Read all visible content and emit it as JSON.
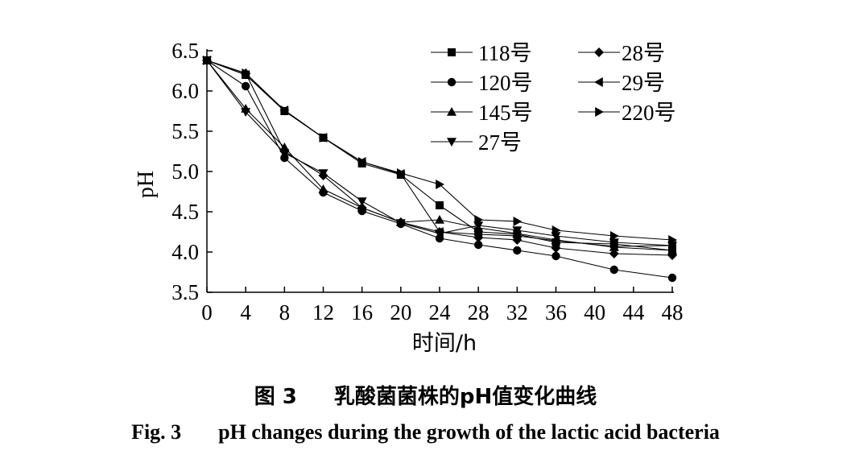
{
  "chart_data": {
    "type": "line",
    "xlabel": "时间/h",
    "ylabel": "pH",
    "xlim": [
      0,
      48
    ],
    "ylim": [
      3.5,
      6.5
    ],
    "xticks": [
      "0",
      "4",
      "8",
      "12",
      "16",
      "20",
      "24",
      "28",
      "32",
      "36",
      "40",
      "44",
      "48"
    ],
    "yticks": [
      "3.5",
      "4.0",
      "4.5",
      "5.0",
      "5.5",
      "6.0",
      "6.5"
    ],
    "grid": false,
    "legend_position": "top-right",
    "x": [
      0,
      4,
      8,
      12,
      16,
      20,
      24,
      28,
      32,
      36,
      42,
      48
    ],
    "series": [
      {
        "name": "118号",
        "marker": "square",
        "values": [
          6.38,
          6.2,
          5.75,
          5.42,
          5.1,
          4.96,
          4.58,
          4.25,
          4.22,
          4.12,
          4.1,
          4.02
        ]
      },
      {
        "name": "28号",
        "marker": "diamond",
        "values": [
          6.38,
          6.22,
          5.25,
          4.95,
          4.55,
          4.37,
          4.25,
          4.18,
          4.15,
          4.05,
          3.98,
          3.96
        ]
      },
      {
        "name": "120号",
        "marker": "circle",
        "values": [
          6.38,
          6.06,
          5.17,
          4.74,
          4.51,
          4.35,
          4.17,
          4.09,
          4.02,
          3.95,
          3.78,
          3.68
        ]
      },
      {
        "name": "29号",
        "marker": "triangle-left",
        "values": [
          6.38,
          6.2,
          5.76,
          5.42,
          5.12,
          4.97,
          4.25,
          4.22,
          4.2,
          4.14,
          4.07,
          4.08
        ]
      },
      {
        "name": "145号",
        "marker": "triangle-up",
        "values": [
          6.38,
          5.78,
          5.3,
          4.78,
          4.55,
          4.37,
          4.4,
          4.3,
          4.23,
          4.15,
          4.06,
          4.02
        ]
      },
      {
        "name": "220号",
        "marker": "triangle-right",
        "values": [
          6.38,
          6.22,
          5.76,
          5.42,
          5.12,
          4.98,
          4.84,
          4.4,
          4.38,
          4.27,
          4.2,
          4.15
        ]
      },
      {
        "name": "27号",
        "marker": "triangle-down",
        "values": [
          6.38,
          5.74,
          5.23,
          4.98,
          4.63,
          4.36,
          4.23,
          4.33,
          4.27,
          4.2,
          4.12,
          4.08
        ]
      }
    ]
  },
  "caption": {
    "zh_fig": "图 3",
    "zh_title": "乳酸菌菌株的pH值变化曲线",
    "en_fig": "Fig. 3",
    "en_title": "pH changes during the growth of the lactic acid bacteria"
  }
}
